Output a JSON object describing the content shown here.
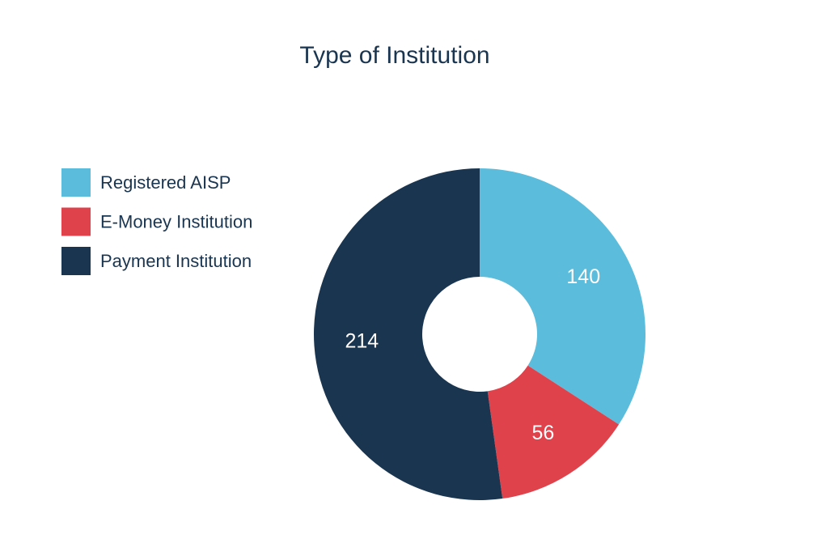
{
  "chart_data": {
    "type": "donut",
    "title": "Type of Institution",
    "categories": [
      "Registered AISP",
      "E-Money Institution",
      "Payment Institution"
    ],
    "values": [
      140,
      56,
      214
    ],
    "colors": [
      "#5bbcdb",
      "#e0424b",
      "#1a3550"
    ],
    "legend": "left"
  }
}
